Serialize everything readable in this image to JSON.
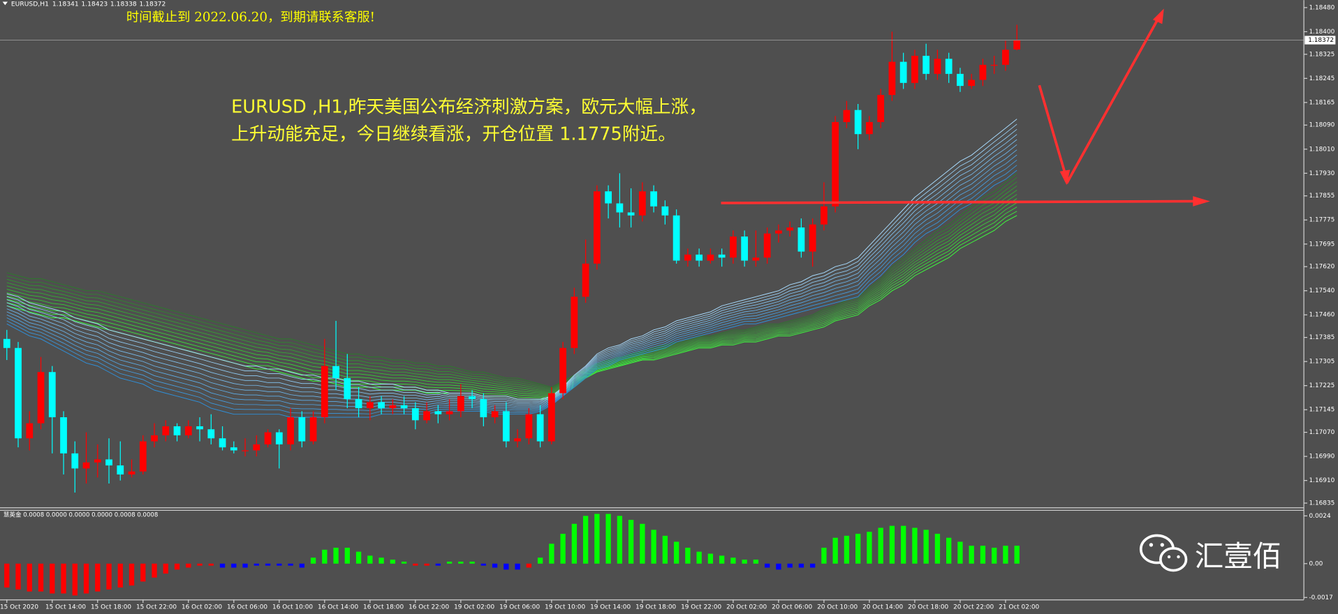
{
  "chart_data": [
    {
      "type": "candlestick",
      "title": "EURUSD,H1",
      "notice": "时间截止到 2022.06.20，到期请联系客服!",
      "annotations": [
        "EURUSD ,H1,昨天美国公布经济刺激方案，欧元大幅上涨，",
        "上升动能充足，今日继续看涨，开仓位置 1.1775附近。"
      ],
      "watermark": "汇壹佰",
      "up_color": "#ff0000",
      "down_color": "#00ffff",
      "categories": [
        "15 Oct 2020",
        null,
        null,
        null,
        "15 Oct 14:00",
        null,
        null,
        null,
        "15 Oct 18:00",
        null,
        null,
        null,
        "15 Oct 22:00",
        null,
        null,
        null,
        "16 Oct 02:00",
        null,
        null,
        null,
        "16 Oct 06:00",
        null,
        null,
        null,
        "16 Oct 10:00",
        null,
        null,
        null,
        "16 Oct 14:00",
        null,
        null,
        null,
        "16 Oct 18:00",
        null,
        null,
        null,
        "16 Oct 22:00",
        null,
        null,
        null,
        "19 Oct 02:00",
        null,
        null,
        null,
        "19 Oct 06:00",
        null,
        null,
        null,
        "19 Oct 10:00",
        null,
        null,
        null,
        "19 Oct 14:00",
        null,
        null,
        null,
        "19 Oct 18:00",
        null,
        null,
        null,
        "19 Oct 22:00",
        null,
        null,
        null,
        "20 Oct 02:00",
        null,
        null,
        null,
        "20 Oct 06:00",
        null,
        null,
        null,
        "20 Oct 10:00",
        null,
        null,
        null,
        "20 Oct 14:00",
        null,
        null,
        null,
        "20 Oct 18:00",
        null,
        null,
        null,
        "20 Oct 22:00",
        null,
        null,
        null,
        "21 Oct 02:00",
        null
      ],
      "open": [
        1.1738,
        1.1735,
        1.1705,
        1.171,
        1.1727,
        1.1712,
        1.17,
        1.1695,
        1.1697,
        1.1698,
        1.1696,
        1.1693,
        1.1694,
        1.1704,
        1.1706,
        1.1709,
        1.1706,
        1.1709,
        1.1708,
        1.1705,
        1.1702,
        1.1701,
        1.1701,
        1.1703,
        1.1707,
        1.1703,
        1.1712,
        1.1704,
        1.1712,
        1.1729,
        1.1725,
        1.1718,
        1.1715,
        1.1717,
        1.1715,
        1.1716,
        1.1715,
        1.1711,
        1.1714,
        1.1713,
        1.1714,
        1.1719,
        1.1718,
        1.1712,
        1.1714,
        1.1704,
        1.1705,
        1.1713,
        1.1704,
        1.172,
        1.1735,
        1.1752,
        1.1763,
        1.1787,
        1.1783,
        1.178,
        1.1779,
        1.1787,
        1.1782,
        1.1779,
        1.1764,
        1.1766,
        1.1764,
        1.1766,
        1.1765,
        1.1772,
        1.1764,
        1.1765,
        1.1773,
        1.1774,
        1.1775,
        1.1767,
        1.1776,
        1.1782,
        1.181,
        1.1814,
        1.1806,
        1.181,
        1.1819,
        1.183,
        1.1823,
        1.1832,
        1.1826,
        1.1831,
        1.1826,
        1.1822,
        1.1824,
        1.1829,
        1.1829,
        1.18341
      ],
      "high": [
        1.1741,
        1.1737,
        1.1714,
        1.1732,
        1.1729,
        1.1714,
        1.1704,
        1.1707,
        1.1703,
        1.1705,
        1.1704,
        1.1698,
        1.1706,
        1.171,
        1.1711,
        1.171,
        1.1711,
        1.1712,
        1.1713,
        1.1709,
        1.1704,
        1.1705,
        1.1706,
        1.1708,
        1.1708,
        1.1715,
        1.1714,
        1.1714,
        1.1738,
        1.1744,
        1.1733,
        1.1722,
        1.1719,
        1.1719,
        1.1718,
        1.1719,
        1.1717,
        1.1717,
        1.1716,
        1.1718,
        1.1723,
        1.1721,
        1.172,
        1.1716,
        1.1717,
        1.1708,
        1.1715,
        1.1716,
        1.1722,
        1.1737,
        1.1755,
        1.1771,
        1.1789,
        1.1789,
        1.1793,
        1.1788,
        1.179,
        1.1789,
        1.1784,
        1.1781,
        1.1768,
        1.1768,
        1.1768,
        1.1768,
        1.1774,
        1.1774,
        1.1774,
        1.1775,
        1.1776,
        1.1777,
        1.1778,
        1.1778,
        1.179,
        1.1812,
        1.1817,
        1.1816,
        1.1812,
        1.1821,
        1.184,
        1.1833,
        1.1834,
        1.1836,
        1.1834,
        1.1833,
        1.1828,
        1.1826,
        1.1831,
        1.1832,
        1.1837,
        1.18423
      ],
      "low": [
        1.1731,
        1.1702,
        1.1701,
        1.1708,
        1.17,
        1.1693,
        1.1687,
        1.169,
        1.1692,
        1.169,
        1.1691,
        1.1692,
        1.1693,
        1.1702,
        1.1704,
        1.1704,
        1.1705,
        1.1704,
        1.1703,
        1.1701,
        1.17,
        1.1699,
        1.1699,
        1.1702,
        1.1695,
        1.1701,
        1.1702,
        1.1703,
        1.171,
        1.1721,
        1.1715,
        1.1712,
        1.1711,
        1.1713,
        1.1713,
        1.1713,
        1.1708,
        1.171,
        1.171,
        1.1711,
        1.1712,
        1.1715,
        1.1709,
        1.171,
        1.1702,
        1.1702,
        1.1703,
        1.1702,
        1.1703,
        1.1718,
        1.1733,
        1.175,
        1.1761,
        1.1778,
        1.1775,
        1.1775,
        1.1777,
        1.178,
        1.1776,
        1.1763,
        1.1762,
        1.1762,
        1.1763,
        1.1762,
        1.1763,
        1.1762,
        1.1762,
        1.1763,
        1.177,
        1.1772,
        1.1765,
        1.1762,
        1.1774,
        1.178,
        1.1808,
        1.1801,
        1.1804,
        1.1808,
        1.1817,
        1.1821,
        1.1821,
        1.1824,
        1.1824,
        1.1823,
        1.182,
        1.1821,
        1.1822,
        1.1826,
        1.1827,
        1.18338
      ],
      "close": [
        1.1735,
        1.1705,
        1.171,
        1.1727,
        1.1712,
        1.17,
        1.1695,
        1.1697,
        1.1698,
        1.1696,
        1.1693,
        1.1694,
        1.1704,
        1.1706,
        1.1709,
        1.1706,
        1.1709,
        1.1708,
        1.1705,
        1.1702,
        1.1701,
        1.1701,
        1.1703,
        1.1707,
        1.1703,
        1.1712,
        1.1704,
        1.1712,
        1.1729,
        1.1725,
        1.1718,
        1.1715,
        1.1717,
        1.1715,
        1.1716,
        1.1715,
        1.1711,
        1.1714,
        1.1713,
        1.1714,
        1.1719,
        1.1718,
        1.1712,
        1.1714,
        1.1704,
        1.1705,
        1.1713,
        1.1704,
        1.172,
        1.1735,
        1.1752,
        1.1763,
        1.1787,
        1.1783,
        1.178,
        1.1779,
        1.1787,
        1.1782,
        1.1779,
        1.1764,
        1.1766,
        1.1764,
        1.1766,
        1.1765,
        1.1772,
        1.1764,
        1.1765,
        1.1773,
        1.1774,
        1.1775,
        1.1767,
        1.1776,
        1.1782,
        1.181,
        1.1814,
        1.1806,
        1.181,
        1.1819,
        1.183,
        1.1823,
        1.1832,
        1.1826,
        1.1831,
        1.1826,
        1.1822,
        1.1824,
        1.1829,
        1.1829,
        1.1834,
        1.18372
      ],
      "series": [
        {
          "color": "#a8dcff",
          "values": [
            1.1753,
            1.1752,
            1.175,
            1.1749,
            1.1748,
            1.1747,
            1.1745,
            1.1744,
            1.1743,
            1.1741,
            1.174,
            1.1739,
            1.1738,
            1.1737,
            1.1736,
            1.1735,
            1.1734,
            1.1733,
            1.1732,
            1.1731,
            1.173,
            1.1729,
            1.1729,
            1.1728,
            1.1728,
            1.1727,
            1.1726,
            1.1726,
            1.1725,
            1.1725,
            1.1724,
            1.1724,
            1.1723,
            1.1723,
            1.1723,
            1.1722,
            1.1722,
            1.1721,
            1.1721,
            1.172,
            1.172,
            1.172,
            1.1719,
            1.1719,
            1.1719,
            1.1718,
            1.1718,
            1.1718,
            1.1719,
            1.1722,
            1.1726,
            1.1729,
            1.1733,
            1.1735,
            1.1736,
            1.1738,
            1.1739,
            1.1741,
            1.1742,
            1.1744,
            1.1745,
            1.1746,
            1.1747,
            1.1749,
            1.175,
            1.1751,
            1.1752,
            1.1753,
            1.1754,
            1.1756,
            1.1757,
            1.1759,
            1.176,
            1.1762,
            1.1763,
            1.1765,
            1.1769,
            1.1773,
            1.1777,
            1.1781,
            1.1785,
            1.1788,
            1.1791,
            1.1794,
            1.1797,
            1.1799,
            1.1802,
            1.1805,
            1.1808,
            1.1811
          ]
        },
        {
          "color": "#2f8fd8",
          "values": [
            1.1743,
            1.1741,
            1.1739,
            1.1738,
            1.1736,
            1.1734,
            1.1732,
            1.173,
            1.1729,
            1.1727,
            1.1725,
            1.1724,
            1.1723,
            1.1721,
            1.172,
            1.1719,
            1.1718,
            1.1717,
            1.1715,
            1.1714,
            1.1713,
            1.1713,
            1.1713,
            1.1713,
            1.1713,
            1.1712,
            1.1712,
            1.1712,
            1.1712,
            1.1712,
            1.1712,
            1.1712,
            1.1712,
            1.1713,
            1.1713,
            1.1713,
            1.1713,
            1.1713,
            1.1714,
            1.1714,
            1.1714,
            1.1714,
            1.1714,
            1.1713,
            1.1713,
            1.1713,
            1.1713,
            1.1714,
            1.1716,
            1.1719,
            1.1722,
            1.1725,
            1.1728,
            1.1729,
            1.1731,
            1.1732,
            1.1733,
            1.1734,
            1.1735,
            1.1737,
            1.1738,
            1.1739,
            1.174,
            1.1741,
            1.1742,
            1.1743,
            1.1743,
            1.1744,
            1.1745,
            1.1746,
            1.1747,
            1.1748,
            1.1749,
            1.175,
            1.1751,
            1.1752,
            1.1756,
            1.1759,
            1.1763,
            1.1766,
            1.177,
            1.1773,
            1.1775,
            1.1778,
            1.1781,
            1.1783,
            1.1786,
            1.1789,
            1.1791,
            1.1794
          ]
        },
        {
          "color": "#2d7a2d",
          "values": [
            1.176,
            1.1759,
            1.1758,
            1.1758,
            1.1757,
            1.1756,
            1.1755,
            1.1754,
            1.1754,
            1.1753,
            1.1752,
            1.1751,
            1.175,
            1.1749,
            1.1748,
            1.1747,
            1.1746,
            1.1745,
            1.1744,
            1.1743,
            1.1742,
            1.1741,
            1.174,
            1.1739,
            1.1738,
            1.1738,
            1.1737,
            1.1736,
            1.1735,
            1.1734,
            1.1733,
            1.1733,
            1.1732,
            1.1732,
            1.1731,
            1.1731,
            1.173,
            1.173,
            1.1729,
            1.1729,
            1.1728,
            1.1727,
            1.1727,
            1.1726,
            1.1725,
            1.1725,
            1.1724,
            1.1723,
            1.1722,
            1.1724,
            1.1726,
            1.1728,
            1.173,
            1.1731,
            1.1732,
            1.1733,
            1.1734,
            1.1735,
            1.1736,
            1.1737,
            1.1738,
            1.1739,
            1.1739,
            1.174,
            1.1741,
            1.1741,
            1.1742,
            1.1743,
            1.1743,
            1.1744,
            1.1745,
            1.1746,
            1.1748,
            1.1749,
            1.1751,
            1.1752,
            1.1755,
            1.1758,
            1.1762,
            1.1765,
            1.1768,
            1.1771,
            1.1774,
            1.1776,
            1.1779,
            1.1782,
            1.1785,
            1.1787,
            1.179,
            1.1793
          ]
        },
        {
          "color": "#3cff3c",
          "values": [
            1.1749,
            1.1748,
            1.1747,
            1.1746,
            1.1745,
            1.1745,
            1.1744,
            1.1743,
            1.1742,
            1.1741,
            1.174,
            1.1739,
            1.1738,
            1.1737,
            1.1736,
            1.1735,
            1.1734,
            1.1733,
            1.1732,
            1.1731,
            1.173,
            1.1729,
            1.1728,
            1.1728,
            1.1727,
            1.1726,
            1.1725,
            1.1724,
            1.1724,
            1.1723,
            1.1722,
            1.1722,
            1.1722,
            1.1721,
            1.1721,
            1.1721,
            1.1721,
            1.172,
            1.172,
            1.172,
            1.172,
            1.172,
            1.1719,
            1.1719,
            1.1719,
            1.1718,
            1.1718,
            1.1718,
            1.1718,
            1.172,
            1.1722,
            1.1725,
            1.1727,
            1.1728,
            1.1729,
            1.173,
            1.1731,
            1.1731,
            1.1732,
            1.1733,
            1.1734,
            1.1735,
            1.1735,
            1.1736,
            1.1736,
            1.1737,
            1.1737,
            1.1738,
            1.1739,
            1.1739,
            1.174,
            1.1741,
            1.1742,
            1.1744,
            1.1745,
            1.1746,
            1.1749,
            1.1751,
            1.1754,
            1.1756,
            1.1759,
            1.1761,
            1.1763,
            1.1765,
            1.1768,
            1.177,
            1.1772,
            1.1774,
            1.1777,
            1.1779
          ]
        }
      ],
      "ylim": [
        1.16818,
        1.18505
      ],
      "yticks": [
        {
          "value": 1.1848,
          "label": "1.18480"
        },
        {
          "value": 1.184,
          "label": "1.18400"
        },
        1.18325,
        1.18245,
        1.18165,
        {
          "value": 1.1809,
          "label": "1.18090"
        },
        {
          "value": 1.1801,
          "label": "1.18010"
        },
        {
          "value": 1.1793,
          "label": "1.17930"
        },
        1.17855,
        1.17775,
        1.17695,
        {
          "value": 1.1762,
          "label": "1.17620"
        },
        {
          "value": 1.1754,
          "label": "1.17540"
        },
        {
          "value": 1.1746,
          "label": "1.17460"
        },
        1.17385,
        1.17305,
        1.17225,
        1.17145,
        {
          "value": 1.1707,
          "label": "1.17070"
        },
        {
          "value": 1.1699,
          "label": "1.16990"
        },
        {
          "value": 1.1691,
          "label": "1.16910"
        },
        1.16835
      ],
      "grid": false
    },
    {
      "type": "bar",
      "title": "慧英金 0.0008 0.0000 0.0000 0.0000 0.0008 0.0008",
      "values": [
        -0.0012,
        -0.0013,
        -0.0014,
        -0.0014,
        -0.0015,
        -0.0015,
        -0.0016,
        -0.0015,
        -0.0014,
        -0.0013,
        -0.0012,
        -0.0011,
        -0.0009,
        -0.0007,
        -0.0005,
        -0.0003,
        -0.0002,
        -0.0001,
        -0.0001,
        -0.0002,
        -0.0002,
        -0.0002,
        -0.0001,
        -0.0001,
        -0.0001,
        -0.0001,
        -0.0002,
        0.0003,
        0.0007,
        0.0008,
        0.0008,
        0.0006,
        0.0004,
        0.0003,
        0.0002,
        0.0001,
        -0.0001,
        -0.0001,
        -0.0001,
        0.0001,
        0.0001,
        0.0001,
        -0.0001,
        -0.0002,
        -0.0003,
        -0.0003,
        -0.0002,
        0.0003,
        0.001,
        0.0015,
        0.002,
        0.0024,
        0.0025,
        0.0025,
        0.0024,
        0.0022,
        0.002,
        0.0017,
        0.0014,
        0.0011,
        0.0008,
        0.0006,
        0.0005,
        0.0004,
        0.0003,
        0.0002,
        0.0002,
        -0.0002,
        -0.0003,
        -0.0002,
        -0.0002,
        -0.0002,
        0.0008,
        0.0013,
        0.0014,
        0.0015,
        0.0016,
        0.0018,
        0.0019,
        0.0019,
        0.0018,
        0.0017,
        0.0015,
        0.0013,
        0.0011,
        0.0009,
        0.0009,
        0.0008,
        0.0009,
        0.0009
      ],
      "colors": [
        "#ff0000",
        "#ff0000",
        "#ff0000",
        "#ff0000",
        "#ff0000",
        "#ff0000",
        "#ff0000",
        "#ff0000",
        "#ff0000",
        "#ff0000",
        "#ff0000",
        "#ff0000",
        "#ff0000",
        "#ff0000",
        "#ff0000",
        "#ff0000",
        "#ff0000",
        "#ff0000",
        "#ff0000",
        "#0000ff",
        "#0000ff",
        "#0000ff",
        "#0000ff",
        "#0000ff",
        "#0000ff",
        "#0000ff",
        "#0000ff",
        "#00ff00",
        "#00ff00",
        "#00ff00",
        "#00ff00",
        "#00ff00",
        "#00ff00",
        "#00ff00",
        "#00ff00",
        "#00ff00",
        "#ff0000",
        "#ff0000",
        "#0000ff",
        "#00ff00",
        "#00ff00",
        "#00ff00",
        "#0000ff",
        "#0000ff",
        "#0000ff",
        "#0000ff",
        "#ff0000",
        "#00ff00",
        "#00ff00",
        "#00ff00",
        "#00ff00",
        "#00ff00",
        "#00ff00",
        "#00ff00",
        "#00ff00",
        "#00ff00",
        "#00ff00",
        "#00ff00",
        "#00ff00",
        "#00ff00",
        "#00ff00",
        "#00ff00",
        "#00ff00",
        "#00ff00",
        "#00ff00",
        "#00ff00",
        "#00ff00",
        "#0000ff",
        "#0000ff",
        "#0000ff",
        "#0000ff",
        "#0000ff",
        "#00ff00",
        "#00ff00",
        "#00ff00",
        "#00ff00",
        "#00ff00",
        "#00ff00",
        "#00ff00",
        "#00ff00",
        "#00ff00",
        "#00ff00",
        "#00ff00",
        "#00ff00",
        "#00ff00",
        "#00ff00",
        "#00ff00",
        "#00ff00",
        "#00ff00",
        "#00ff00"
      ],
      "ylim": [
        -0.0018,
        0.0027
      ],
      "yticks": [
        0.0024,
        {
          "value": 0,
          "label": "0.00"
        },
        -0.0017
      ]
    }
  ]
}
